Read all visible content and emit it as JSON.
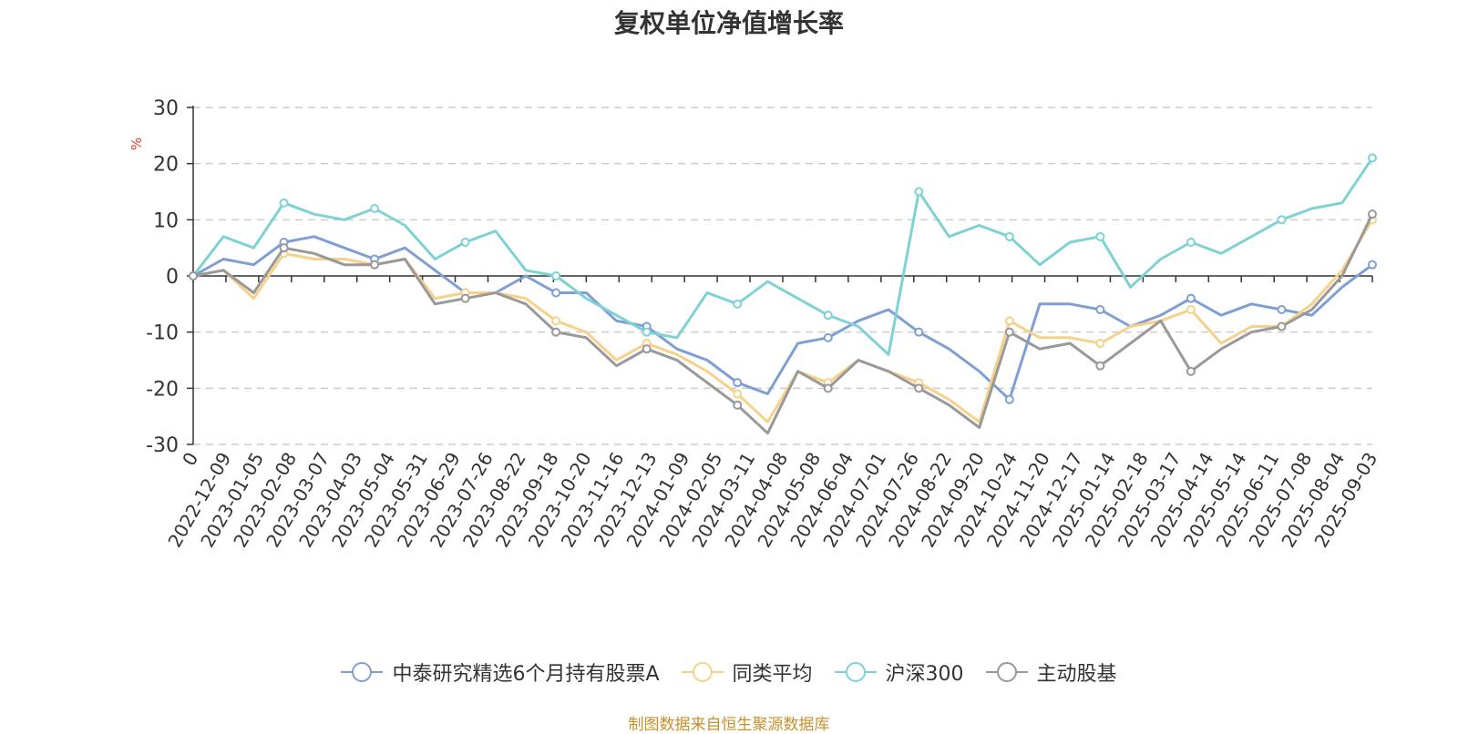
{
  "chart_data": {
    "type": "line",
    "title": "复权单位净值增长率",
    "ylabel": "%",
    "ylim": [
      -30,
      30
    ],
    "yticks": [
      30,
      20,
      10,
      0,
      -10,
      -20,
      -30
    ],
    "x_start_label": "0",
    "x_tick_labels": [
      "2022-12-09",
      "2023-01-05",
      "2023-02-08",
      "2023-03-07",
      "2023-04-03",
      "2023-05-04",
      "2023-05-31",
      "2023-06-29",
      "2023-07-26",
      "2023-08-22",
      "2023-09-18",
      "2023-10-20",
      "2023-11-16",
      "2023-12-13",
      "2024-01-09",
      "2024-02-05",
      "2024-03-11",
      "2024-04-08",
      "2024-05-08",
      "2024-06-04",
      "2024-07-01",
      "2024-07-26",
      "2024-08-22",
      "2024-09-20",
      "2024-10-24",
      "2024-11-20",
      "2024-12-17",
      "2025-01-14",
      "2025-02-18",
      "2025-03-17",
      "2025-04-14",
      "2025-05-14",
      "2025-06-11",
      "2025-07-08",
      "2025-08-04",
      "2025-09-03"
    ],
    "grid": true,
    "legend_position": "bottom",
    "series": [
      {
        "name": "中泰研究精选6个月持有股票A",
        "color": "#7f9fd4",
        "values": [
          0,
          3,
          2,
          6,
          7,
          5,
          3,
          5,
          1,
          -3,
          -3,
          0,
          -3,
          -3,
          -8,
          -9,
          -13,
          -15,
          -19,
          -21,
          -12,
          -11,
          -8,
          -6,
          -10,
          -13,
          -17,
          -22,
          -5,
          -5,
          -6,
          -9,
          -7,
          -4,
          -7,
          -5,
          -6,
          -7,
          -2,
          2
        ]
      },
      {
        "name": "同类平均",
        "color": "#f7d18a",
        "values": [
          0,
          1,
          -4,
          4,
          3,
          3,
          2,
          3,
          -4,
          -3,
          -3,
          -4,
          -8,
          -10,
          -15,
          -12,
          -14,
          -17,
          -21,
          -26,
          -17,
          -19,
          -15,
          -17,
          -19,
          -22,
          -26,
          -8,
          -11,
          -11,
          -12,
          -9,
          -8,
          -6,
          -12,
          -9,
          -9,
          -5,
          1,
          10
        ]
      },
      {
        "name": "沪深300",
        "color": "#7fd2d4",
        "values": [
          0,
          7,
          5,
          13,
          11,
          10,
          12,
          9,
          3,
          6,
          8,
          1,
          0,
          -4,
          -7,
          -10,
          -11,
          -3,
          -5,
          -1,
          -4,
          -7,
          -9,
          -14,
          15,
          7,
          9,
          7,
          2,
          6,
          7,
          -2,
          3,
          6,
          4,
          7,
          10,
          12,
          13,
          21
        ]
      },
      {
        "name": "主动股基",
        "color": "#999999",
        "values": [
          0,
          1,
          -3,
          5,
          4,
          2,
          2,
          3,
          -5,
          -4,
          -3,
          -5,
          -10,
          -11,
          -16,
          -13,
          -15,
          -19,
          -23,
          -28,
          -17,
          -20,
          -15,
          -17,
          -20,
          -23,
          -27,
          -10,
          -13,
          -12,
          -16,
          -12,
          -8,
          -17,
          -13,
          -10,
          -9,
          -6,
          0,
          11
        ]
      }
    ]
  },
  "source_note": "制图数据来自恒生聚源数据库"
}
